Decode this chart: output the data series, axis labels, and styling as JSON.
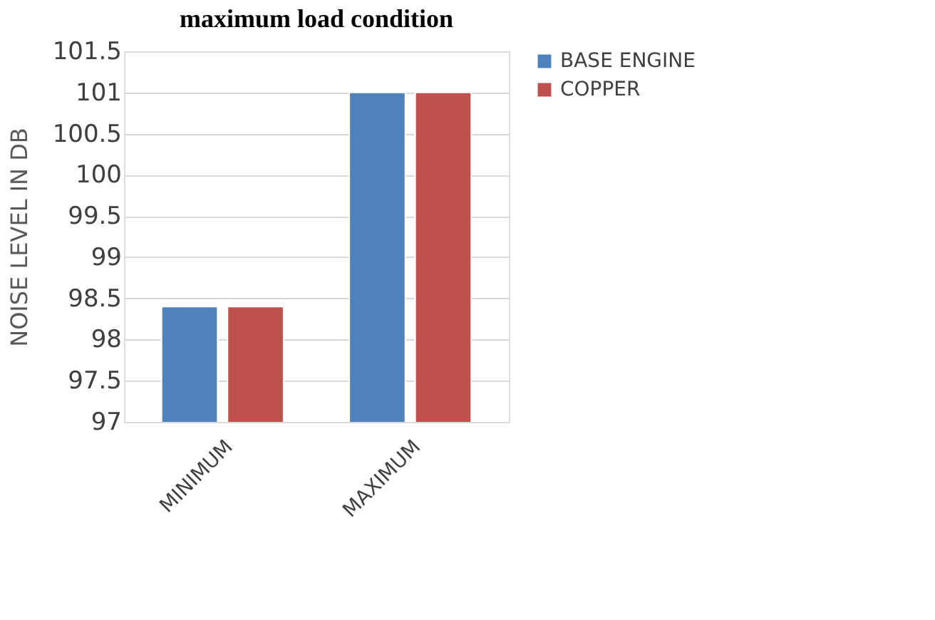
{
  "chart_data": {
    "type": "bar",
    "title": "maximum load condition",
    "ylabel": "NOISE LEVEL IN DB",
    "categories": [
      "MINIMUM",
      "MAXIMUM"
    ],
    "series": [
      {
        "name": "BASE ENGINE",
        "color": "#4f81bd",
        "values": [
          98.4,
          101
        ]
      },
      {
        "name": "COPPER",
        "color": "#c0504d",
        "values": [
          98.4,
          101
        ]
      }
    ],
    "ylim": [
      97,
      101.5
    ],
    "yticks": [
      97,
      97.5,
      98,
      98.5,
      99,
      99.5,
      100,
      100.5,
      101,
      101.5
    ],
    "grid": "y",
    "legend": "right"
  }
}
